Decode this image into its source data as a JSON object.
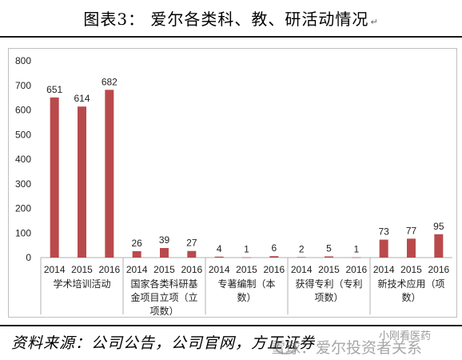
{
  "header": {
    "title": "图表3：   爱尔各类科、教、研活动情况",
    "mark": "↵"
  },
  "footer": {
    "source": "资料来源：公司公告，公司官网，方正证券",
    "watermark": "雪球：爱尔投资者关系",
    "watermark_small": "小刚看医药"
  },
  "chart_data": {
    "type": "bar",
    "ylim": [
      0,
      800
    ],
    "yticks": [
      0,
      100,
      200,
      300,
      400,
      500,
      600,
      700,
      800
    ],
    "bar_color": "#b94a4c",
    "groups": [
      {
        "label": "学术培训活动",
        "years": [
          "2014",
          "2015",
          "2016"
        ],
        "values": [
          651,
          614,
          682
        ]
      },
      {
        "label": "国家各类科研基金项目立项（立项数）",
        "years": [
          "2014",
          "2015",
          "2016"
        ],
        "values": [
          26,
          39,
          27
        ]
      },
      {
        "label": "专著编制（本数）",
        "years": [
          "2014",
          "2015",
          "2016"
        ],
        "values": [
          4,
          1,
          6
        ]
      },
      {
        "label": "获得专利（专利项数）",
        "years": [
          "2014",
          "2015",
          "2016"
        ],
        "values": [
          2,
          5,
          1
        ]
      },
      {
        "label": "新技术应用（项数）",
        "years": [
          "2014",
          "2015",
          "2016"
        ],
        "values": [
          73,
          77,
          95
        ]
      }
    ]
  }
}
